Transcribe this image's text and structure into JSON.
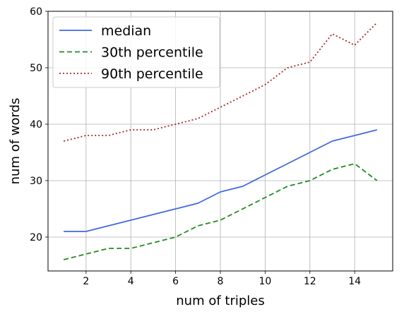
{
  "chart_data": {
    "type": "line",
    "x": [
      1,
      2,
      3,
      4,
      5,
      6,
      7,
      8,
      9,
      10,
      11,
      12,
      13,
      14,
      15
    ],
    "series": [
      {
        "name": "median",
        "color": "#4169e1",
        "dash": "solid",
        "values": [
          21,
          21,
          22,
          23,
          24,
          25,
          26,
          28,
          29,
          31,
          33,
          35,
          37,
          38,
          39
        ]
      },
      {
        "name": "30th percentile",
        "color": "#228b22",
        "dash": "dashed",
        "values": [
          16,
          17,
          18,
          18,
          19,
          20,
          22,
          23,
          25,
          27,
          29,
          30,
          32,
          33,
          30
        ]
      },
      {
        "name": "90th percentile",
        "color": "#a52a2a",
        "dash": "dotted",
        "values": [
          37,
          38,
          38,
          39,
          39,
          40,
          41,
          43,
          45,
          47,
          50,
          51,
          56,
          54,
          58
        ]
      }
    ],
    "xlabel": "num of triples",
    "ylabel": "num of words",
    "xlim": [
      0.3,
      15.7
    ],
    "ylim": [
      14,
      60
    ],
    "xticks": [
      2,
      4,
      6,
      8,
      10,
      12,
      14
    ],
    "yticks": [
      20,
      30,
      40,
      50,
      60
    ],
    "grid": true,
    "legend_position": "top-left"
  }
}
